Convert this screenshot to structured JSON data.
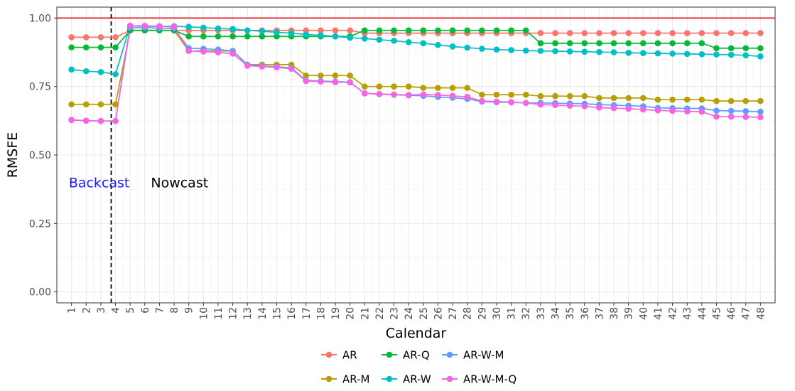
{
  "chart_data": {
    "type": "line",
    "title": "",
    "xlabel": "Calendar",
    "ylabel": "RMSFE",
    "x": [
      1,
      2,
      3,
      4,
      5,
      6,
      7,
      8,
      9,
      10,
      11,
      12,
      13,
      14,
      15,
      16,
      17,
      18,
      19,
      20,
      21,
      22,
      23,
      24,
      25,
      26,
      27,
      28,
      29,
      30,
      31,
      32,
      33,
      34,
      35,
      36,
      37,
      38,
      39,
      40,
      41,
      42,
      43,
      44,
      45,
      46,
      47,
      48
    ],
    "xlim": [
      0,
      49
    ],
    "ylim": [
      -0.04,
      1.04
    ],
    "y_ticks": [
      0.0,
      0.25,
      0.5,
      0.75,
      1.0
    ],
    "y_tick_labels": [
      "0.00",
      "0.25",
      "0.50",
      "0.75",
      "1.00"
    ],
    "grid": true,
    "legend_position": "bottom",
    "reference_line": {
      "y": 1.0,
      "color": "#e41a1c"
    },
    "divider": {
      "x": 4,
      "style": "dashed",
      "color": "#000000"
    },
    "annotations": [
      {
        "text": "Backcast",
        "x": 1.3,
        "y": 0.4,
        "color": "#1a1aff"
      },
      {
        "text": "Nowcast",
        "x": 6.9,
        "y": 0.4,
        "color": "#000000"
      }
    ],
    "series": [
      {
        "name": "AR",
        "color": "#F8766D",
        "values": [
          0.93,
          0.93,
          0.93,
          0.93,
          0.955,
          0.955,
          0.955,
          0.955,
          0.955,
          0.955,
          0.955,
          0.955,
          0.955,
          0.955,
          0.955,
          0.955,
          0.955,
          0.955,
          0.955,
          0.955,
          0.945,
          0.945,
          0.945,
          0.945,
          0.945,
          0.945,
          0.945,
          0.945,
          0.945,
          0.945,
          0.945,
          0.945,
          0.945,
          0.945,
          0.945,
          0.945,
          0.945,
          0.945,
          0.945,
          0.945,
          0.945,
          0.945,
          0.945,
          0.945,
          0.945,
          0.945,
          0.945,
          0.945
        ]
      },
      {
        "name": "AR-M",
        "color": "#B79F00",
        "values": [
          0.685,
          0.685,
          0.685,
          0.685,
          0.955,
          0.955,
          0.955,
          0.955,
          0.88,
          0.88,
          0.88,
          0.88,
          0.83,
          0.83,
          0.83,
          0.83,
          0.79,
          0.79,
          0.79,
          0.79,
          0.75,
          0.75,
          0.75,
          0.75,
          0.745,
          0.745,
          0.745,
          0.745,
          0.72,
          0.72,
          0.72,
          0.72,
          0.715,
          0.715,
          0.715,
          0.715,
          0.708,
          0.708,
          0.708,
          0.708,
          0.702,
          0.702,
          0.702,
          0.702,
          0.697,
          0.697,
          0.697,
          0.697
        ]
      },
      {
        "name": "AR-Q",
        "color": "#00BA38",
        "values": [
          0.893,
          0.893,
          0.893,
          0.893,
          0.955,
          0.955,
          0.955,
          0.955,
          0.933,
          0.933,
          0.933,
          0.933,
          0.933,
          0.933,
          0.933,
          0.933,
          0.933,
          0.933,
          0.933,
          0.933,
          0.955,
          0.955,
          0.955,
          0.955,
          0.955,
          0.955,
          0.955,
          0.955,
          0.955,
          0.955,
          0.955,
          0.955,
          0.908,
          0.908,
          0.908,
          0.908,
          0.908,
          0.908,
          0.908,
          0.908,
          0.908,
          0.908,
          0.908,
          0.908,
          0.89,
          0.89,
          0.89,
          0.89
        ]
      },
      {
        "name": "AR-W",
        "color": "#00BFC4",
        "values": [
          0.812,
          0.806,
          0.803,
          0.795,
          0.972,
          0.97,
          0.97,
          0.97,
          0.968,
          0.965,
          0.962,
          0.96,
          0.955,
          0.952,
          0.948,
          0.945,
          0.94,
          0.937,
          0.933,
          0.928,
          0.925,
          0.921,
          0.917,
          0.912,
          0.908,
          0.902,
          0.896,
          0.892,
          0.888,
          0.885,
          0.883,
          0.881,
          0.88,
          0.879,
          0.878,
          0.877,
          0.876,
          0.875,
          0.873,
          0.872,
          0.871,
          0.87,
          0.869,
          0.868,
          0.867,
          0.866,
          0.864,
          0.86
        ]
      },
      {
        "name": "AR-W-M",
        "color": "#619CFF",
        "values": [
          0.628,
          0.625,
          0.624,
          0.624,
          0.965,
          0.965,
          0.963,
          0.963,
          0.89,
          0.888,
          0.885,
          0.88,
          0.83,
          0.825,
          0.822,
          0.818,
          0.772,
          0.77,
          0.768,
          0.766,
          0.725,
          0.722,
          0.72,
          0.718,
          0.716,
          0.712,
          0.709,
          0.705,
          0.695,
          0.693,
          0.692,
          0.69,
          0.69,
          0.689,
          0.688,
          0.687,
          0.684,
          0.682,
          0.68,
          0.678,
          0.672,
          0.671,
          0.67,
          0.67,
          0.662,
          0.661,
          0.66,
          0.658
        ]
      },
      {
        "name": "AR-W-M-Q",
        "color": "#F564E3",
        "values": [
          0.628,
          0.625,
          0.624,
          0.624,
          0.972,
          0.972,
          0.97,
          0.968,
          0.88,
          0.878,
          0.875,
          0.87,
          0.826,
          0.823,
          0.82,
          0.815,
          0.77,
          0.768,
          0.766,
          0.765,
          0.725,
          0.723,
          0.721,
          0.719,
          0.721,
          0.719,
          0.716,
          0.712,
          0.697,
          0.695,
          0.693,
          0.69,
          0.684,
          0.682,
          0.68,
          0.678,
          0.673,
          0.671,
          0.669,
          0.666,
          0.663,
          0.661,
          0.659,
          0.658,
          0.64,
          0.64,
          0.639,
          0.638
        ]
      }
    ],
    "legend_rows": [
      [
        "AR",
        "AR-Q",
        "AR-W-M"
      ],
      [
        "AR-M",
        "AR-W",
        "AR-W-M-Q"
      ]
    ]
  }
}
